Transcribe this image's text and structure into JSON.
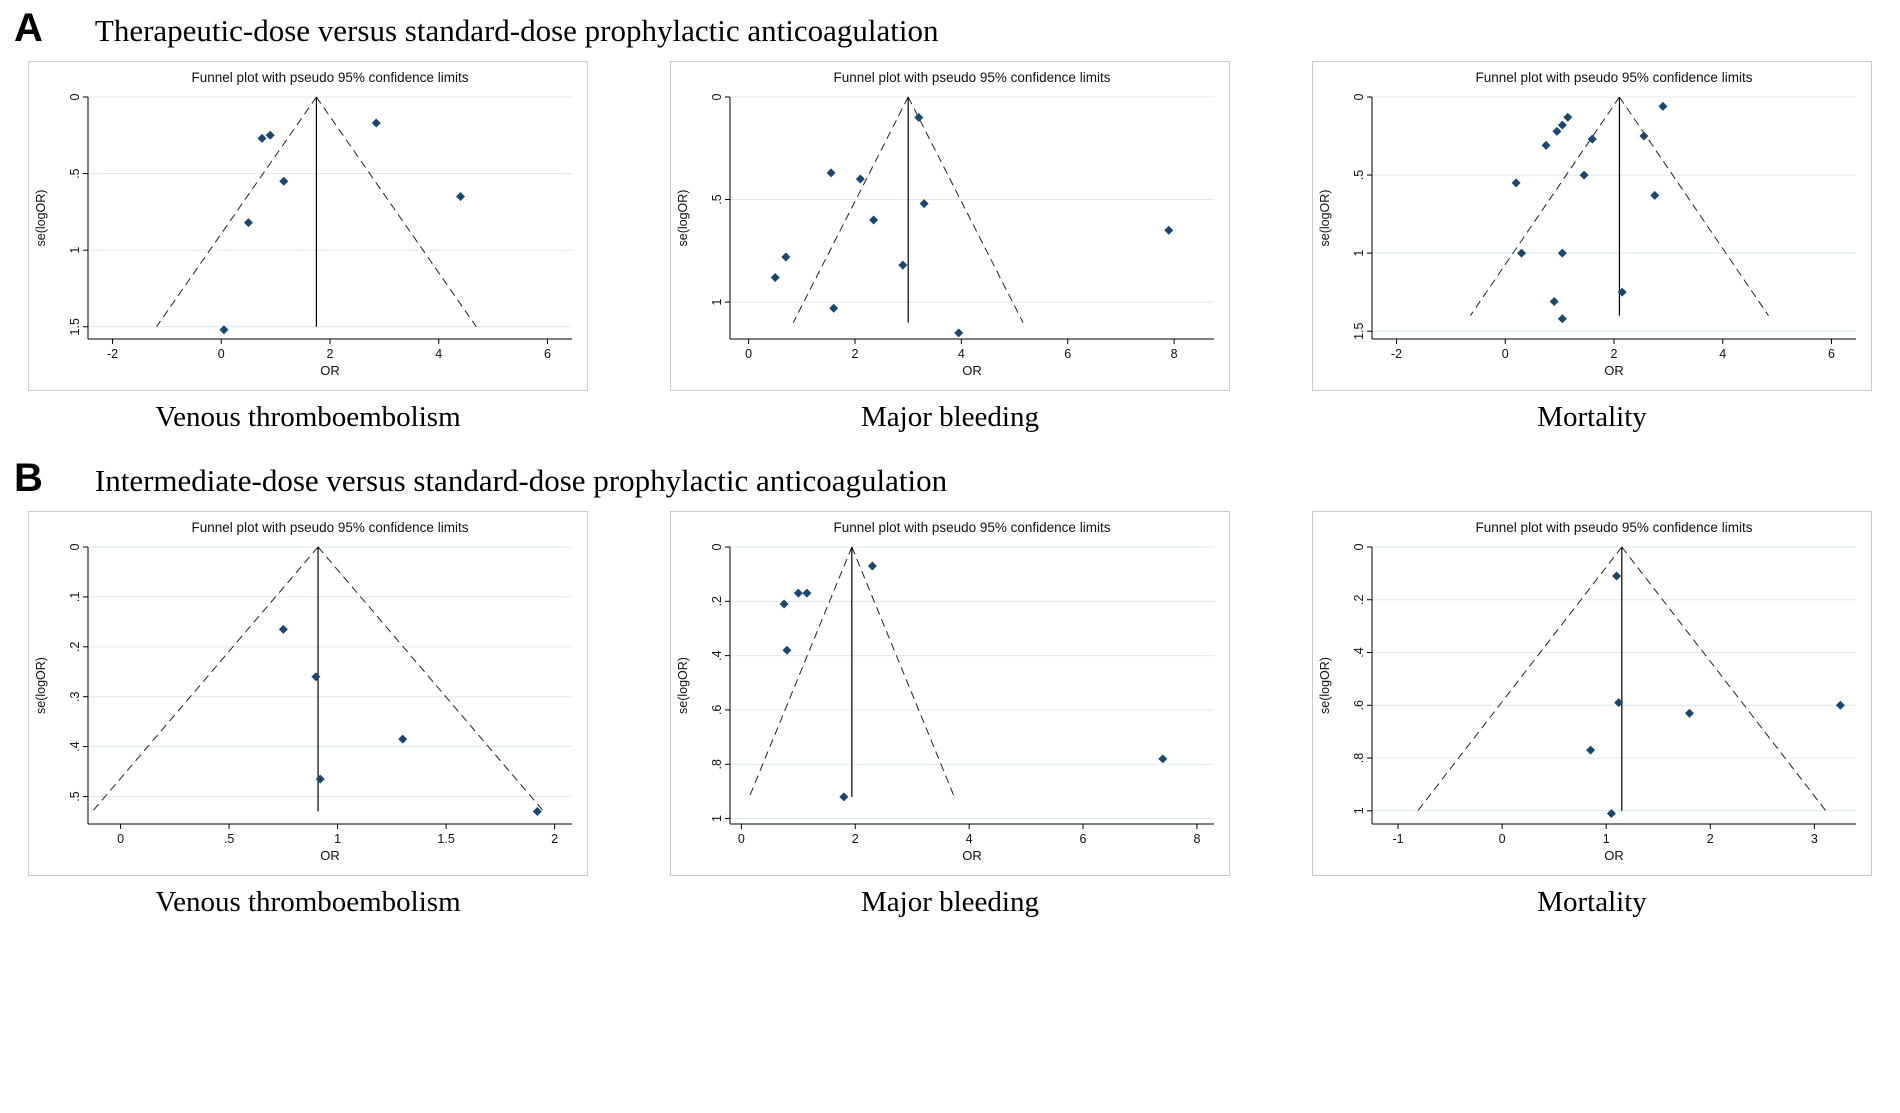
{
  "style": {
    "point_color": "#1a476f",
    "grid_color": "#dde8f2",
    "border_color": "#c9c9c9",
    "axis_color": "#000000",
    "funnel_line_color": "#222222"
  },
  "panels": [
    {
      "label": "A",
      "title": "Therapeutic-dose versus standard-dose prophylactic anticoagulation"
    },
    {
      "label": "B",
      "title": "Intermediate-dose versus standard-dose prophylactic anticoagulation"
    }
  ],
  "chart_data": [
    {
      "type": "scatter",
      "subtype": "funnel",
      "panel": "A",
      "caption": "Venous thromboembolism",
      "title": "Funnel plot with pseudo 95% confidence limits",
      "xlabel": "OR",
      "ylabel": "se(logOR)",
      "xlim": [
        -2.45,
        6.45
      ],
      "ylim": [
        0,
        1.58
      ],
      "xticks": [
        -2,
        0,
        2,
        4,
        6
      ],
      "xtick_labels": [
        "-2",
        "0",
        "2",
        "4",
        "6"
      ],
      "yticks": [
        0,
        0.5,
        1,
        1.5
      ],
      "ytick_labels": [
        "0",
        ".5",
        "1",
        "1.5"
      ],
      "pooled_or": 1.75,
      "funnel": {
        "base_se": 1.5,
        "left_x": -1.19,
        "right_x": 4.69
      },
      "points": [
        [
          0.75,
          0.27
        ],
        [
          0.9,
          0.25
        ],
        [
          2.85,
          0.17
        ],
        [
          1.15,
          0.55
        ],
        [
          4.4,
          0.65
        ],
        [
          0.5,
          0.82
        ],
        [
          0.05,
          1.52
        ]
      ]
    },
    {
      "type": "scatter",
      "subtype": "funnel",
      "panel": "A",
      "caption": "Major bleeding",
      "title": "Funnel plot with pseudo 95% confidence limits",
      "xlabel": "OR",
      "ylabel": "se(logOR)",
      "xlim": [
        -0.35,
        8.75
      ],
      "ylim": [
        0,
        1.18
      ],
      "xticks": [
        0,
        2,
        4,
        6,
        8
      ],
      "xtick_labels": [
        "0",
        "2",
        "4",
        "6",
        "8"
      ],
      "yticks": [
        0,
        0.5,
        1
      ],
      "ytick_labels": [
        "0",
        ".5",
        "1"
      ],
      "pooled_or": 3.0,
      "funnel": {
        "base_se": 1.1,
        "left_x": 0.84,
        "right_x": 5.16
      },
      "points": [
        [
          3.2,
          0.1
        ],
        [
          1.55,
          0.37
        ],
        [
          2.1,
          0.4
        ],
        [
          3.3,
          0.52
        ],
        [
          2.35,
          0.6
        ],
        [
          7.9,
          0.65
        ],
        [
          0.7,
          0.78
        ],
        [
          2.9,
          0.82
        ],
        [
          0.5,
          0.88
        ],
        [
          1.6,
          1.03
        ],
        [
          3.95,
          1.15
        ]
      ]
    },
    {
      "type": "scatter",
      "subtype": "funnel",
      "panel": "A",
      "caption": "Mortality",
      "title": "Funnel plot with pseudo 95% confidence limits",
      "xlabel": "OR",
      "ylabel": "se(logOR)",
      "xlim": [
        -2.45,
        6.45
      ],
      "ylim": [
        0,
        1.55
      ],
      "xticks": [
        -2,
        0,
        2,
        4,
        6
      ],
      "xtick_labels": [
        "-2",
        "0",
        "2",
        "4",
        "6"
      ],
      "yticks": [
        0,
        0.5,
        1,
        1.5
      ],
      "ytick_labels": [
        "0",
        ".5",
        "1",
        "1.5"
      ],
      "pooled_or": 2.1,
      "funnel": {
        "base_se": 1.4,
        "left_x": -0.64,
        "right_x": 4.84
      },
      "points": [
        [
          2.9,
          0.06
        ],
        [
          1.15,
          0.13
        ],
        [
          1.05,
          0.18
        ],
        [
          0.95,
          0.22
        ],
        [
          2.55,
          0.25
        ],
        [
          1.6,
          0.27
        ],
        [
          0.75,
          0.31
        ],
        [
          1.45,
          0.5
        ],
        [
          0.2,
          0.55
        ],
        [
          2.75,
          0.63
        ],
        [
          0.3,
          1.0
        ],
        [
          1.05,
          1.0
        ],
        [
          2.15,
          1.25
        ],
        [
          0.9,
          1.31
        ],
        [
          1.05,
          1.42
        ]
      ]
    },
    {
      "type": "scatter",
      "subtype": "funnel",
      "panel": "B",
      "caption": "Venous thromboembolism",
      "title": "Funnel plot with pseudo 95% confidence limits",
      "xlabel": "OR",
      "ylabel": "se(logOR)",
      "xlim": [
        -0.15,
        2.08
      ],
      "ylim": [
        0,
        0.555
      ],
      "xticks": [
        0,
        0.5,
        1,
        1.5,
        2
      ],
      "xtick_labels": [
        "0",
        ".5",
        "1",
        "1.5",
        "2"
      ],
      "yticks": [
        0,
        0.1,
        0.2,
        0.3,
        0.4,
        0.5
      ],
      "ytick_labels": [
        "0",
        ".1",
        ".2",
        ".3",
        ".4",
        ".5"
      ],
      "pooled_or": 0.91,
      "funnel": {
        "base_se": 0.53,
        "left_x": -0.13,
        "right_x": 1.95
      },
      "points": [
        [
          0.75,
          0.165
        ],
        [
          0.9,
          0.26
        ],
        [
          1.3,
          0.385
        ],
        [
          0.92,
          0.465
        ],
        [
          1.92,
          0.53
        ]
      ]
    },
    {
      "type": "scatter",
      "subtype": "funnel",
      "panel": "B",
      "caption": "Major bleeding",
      "title": "Funnel plot with pseudo 95% confidence limits",
      "xlabel": "OR",
      "ylabel": "se(logOR)",
      "xlim": [
        -0.2,
        8.3
      ],
      "ylim": [
        0,
        1.02
      ],
      "xticks": [
        0,
        2,
        4,
        6,
        8
      ],
      "xtick_labels": [
        "0",
        "2",
        "4",
        "6",
        "8"
      ],
      "yticks": [
        0,
        0.2,
        0.4,
        0.6,
        0.8,
        1
      ],
      "ytick_labels": [
        "0",
        ".2",
        ".4",
        ".6",
        ".8",
        "1"
      ],
      "pooled_or": 1.94,
      "funnel": {
        "base_se": 0.92,
        "left_x": 0.14,
        "right_x": 3.74
      },
      "points": [
        [
          2.3,
          0.07
        ],
        [
          1.0,
          0.17
        ],
        [
          1.15,
          0.17
        ],
        [
          0.75,
          0.21
        ],
        [
          0.8,
          0.38
        ],
        [
          7.4,
          0.78
        ],
        [
          1.8,
          0.92
        ]
      ]
    },
    {
      "type": "scatter",
      "subtype": "funnel",
      "panel": "B",
      "caption": "Mortality",
      "title": "Funnel plot with pseudo 95% confidence limits",
      "xlabel": "OR",
      "ylabel": "se(logOR)",
      "xlim": [
        -1.25,
        3.4
      ],
      "ylim": [
        0,
        1.05
      ],
      "xticks": [
        -1,
        0,
        1,
        2,
        3
      ],
      "xtick_labels": [
        "-1",
        "0",
        "1",
        "2",
        "3"
      ],
      "yticks": [
        0,
        0.2,
        0.4,
        0.6,
        0.8,
        1
      ],
      "ytick_labels": [
        "0",
        ".2",
        ".4",
        ".6",
        ".8",
        "1"
      ],
      "pooled_or": 1.15,
      "funnel": {
        "base_se": 1.0,
        "left_x": -0.81,
        "right_x": 3.11
      },
      "points": [
        [
          1.1,
          0.11
        ],
        [
          1.12,
          0.59
        ],
        [
          3.25,
          0.6
        ],
        [
          1.8,
          0.63
        ],
        [
          0.85,
          0.77
        ],
        [
          1.05,
          1.01
        ]
      ]
    }
  ]
}
